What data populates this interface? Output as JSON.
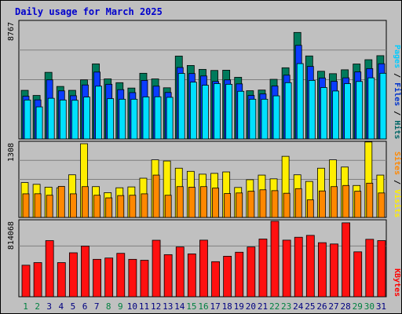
{
  "chart_data": {
    "type": "bar",
    "title": "Daily usage for March 2025",
    "days": [
      "1",
      "2",
      "3",
      "4",
      "5",
      "6",
      "7",
      "8",
      "9",
      "10",
      "11",
      "12",
      "13",
      "14",
      "15",
      "16",
      "17",
      "18",
      "19",
      "20",
      "21",
      "22",
      "23",
      "24",
      "25",
      "26",
      "27",
      "28",
      "29",
      "30",
      "31"
    ],
    "weekend_days": [
      "1",
      "2",
      "8",
      "9",
      "15",
      "16",
      "22",
      "23",
      "29",
      "30"
    ],
    "panels": [
      {
        "id": "top",
        "max_label": "8767",
        "ymax": 8767,
        "right_label": {
          "parts": [
            {
              "text": "Pages",
              "color": "#00ccff"
            },
            {
              "text": " / ",
              "color": "#000000"
            },
            {
              "text": "Files",
              "color": "#0033cc"
            },
            {
              "text": " / ",
              "color": "#000000"
            },
            {
              "text": "Hits",
              "color": "#006666"
            }
          ]
        },
        "series": [
          {
            "name": "Hits",
            "color": "#007a5c",
            "values": [
              3620,
              3240,
              4960,
              3910,
              3620,
              4400,
              5590,
              4470,
              4190,
              3790,
              4890,
              4470,
              3810,
              6170,
              5470,
              5180,
              5100,
              5120,
              4590,
              3590,
              3640,
              4440,
              5300,
              7930,
              6180,
              5040,
              4860,
              5150,
              5580,
              5900,
              6200
            ]
          },
          {
            "name": "Files",
            "color": "#0a3cff",
            "values": [
              3180,
              2910,
              4400,
              3580,
              3220,
              4020,
              4980,
              4070,
              3670,
              3450,
              4360,
              3930,
              3460,
              5320,
              4870,
              4690,
              4280,
              4400,
              4100,
              3240,
              3350,
              3940,
              4750,
              6970,
              5400,
              4540,
              4290,
              4550,
              4990,
              5240,
              5600
            ]
          },
          {
            "name": "Pages",
            "color": "#00e0ff",
            "values": [
              2900,
              2390,
              3030,
              2900,
              2880,
              3120,
              3930,
              3000,
              2960,
              2960,
              3130,
              3140,
              3100,
              4880,
              4230,
              4000,
              4120,
              4070,
              3550,
              2960,
              2960,
              3210,
              4190,
              5610,
              4360,
              3830,
              3570,
              4120,
              4280,
              4550,
              4890
            ]
          }
        ]
      },
      {
        "id": "middle",
        "max_label": "1308",
        "ymax": 1308,
        "right_label": {
          "parts": [
            {
              "text": "Sites",
              "color": "#ff8800"
            },
            {
              "text": " / ",
              "color": "#000000"
            },
            {
              "text": "Visits",
              "color": "#ffee00"
            }
          ]
        },
        "series": [
          {
            "name": "Visits",
            "color": "#ffee00",
            "values": [
              605,
              575,
              525,
              515,
              740,
              1280,
              535,
              430,
              515,
              530,
              681,
              1000,
              980,
              855,
              800,
              751,
              765,
              790,
              520,
              655,
              735,
              670,
              1061,
              740,
              625,
              855,
              1000,
              875,
              555,
              1310,
              735
            ]
          },
          {
            "name": "Sites",
            "color": "#ff8800",
            "values": [
              410,
              411,
              385,
              540,
              410,
              535,
              385,
              340,
              380,
              385,
              410,
              735,
              385,
              535,
              525,
              535,
              510,
              415,
              425,
              455,
              480,
              465,
              420,
              500,
              305,
              460,
              535,
              555,
              455,
              595,
              425
            ]
          }
        ]
      },
      {
        "id": "bottom",
        "max_label": "814068",
        "ymax": 814068,
        "right_label": {
          "parts": [
            {
              "text": "KBytes",
              "color": "#ff0000"
            }
          ]
        },
        "series": [
          {
            "name": "KBytes",
            "color": "#ff1010",
            "values": [
              337000,
              365000,
              600000,
              365000,
              470000,
              541000,
              400000,
              414000,
              464000,
              400000,
              390000,
              604000,
              450000,
              532000,
              458000,
              605000,
              375000,
              433000,
              476000,
              532000,
              617000,
              807000,
              605000,
              636000,
              656000,
              578000,
              564000,
              790000,
              480000,
              614000,
              600000
            ]
          }
        ]
      }
    ]
  }
}
